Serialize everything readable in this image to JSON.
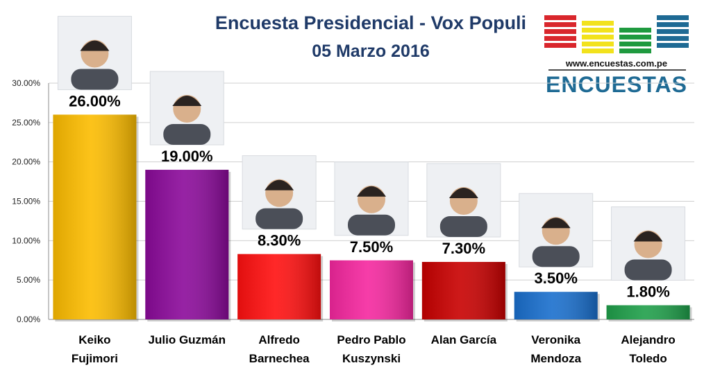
{
  "header": {
    "title": "Encuesta Presidencial - Vox Populi",
    "subtitle": "05 Marzo 2016"
  },
  "logo": {
    "url": "www.encuestas.com.pe",
    "name": "ENCUESTAS",
    "colors": [
      "#d9262c",
      "#f2e21c",
      "#1f9a3f",
      "#1e6a94"
    ]
  },
  "chart_data": {
    "type": "bar",
    "title": "Encuesta Presidencial - Vox Populi",
    "subtitle": "05 Marzo 2016",
    "xlabel": "",
    "ylabel": "",
    "ylim": [
      0,
      30
    ],
    "y_ticks": [
      "0.00%",
      "5.00%",
      "10.00%",
      "15.00%",
      "20.00%",
      "25.00%",
      "30.00%"
    ],
    "grid": true,
    "legend": "none",
    "categories": [
      [
        "Keiko",
        "Fujimori"
      ],
      [
        "Julio Guzmán"
      ],
      [
        "Alfredo",
        "Barnechea"
      ],
      [
        "Pedro Pablo",
        "Kuszynski"
      ],
      [
        "Alan García"
      ],
      [
        "Veronika",
        "Mendoza"
      ],
      [
        "Alejandro",
        "Toledo"
      ]
    ],
    "values": [
      26.0,
      19.0,
      8.3,
      7.5,
      7.3,
      3.5,
      1.8
    ],
    "value_labels": [
      "26.00%",
      "19.00%",
      "8.30%",
      "7.50%",
      "7.30%",
      "3.50%",
      "1.80%"
    ],
    "colors": [
      "#fcbc00",
      "#8b0a9a",
      "#ff1010",
      "#f5279f",
      "#c80000",
      "#1a6fcd",
      "#1f9f4a"
    ]
  }
}
